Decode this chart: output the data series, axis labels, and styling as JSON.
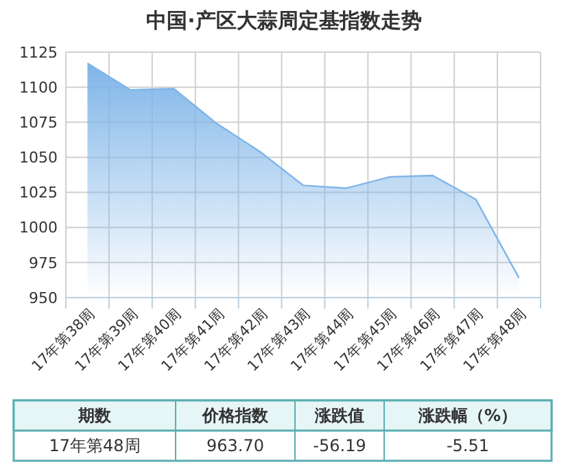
{
  "chart_data": {
    "type": "area",
    "title": "中国·产区大蒜周定基指数走势",
    "categories": [
      "17年第38周",
      "17年第39周",
      "17年第40周",
      "17年第41周",
      "17年第42周",
      "17年第43周",
      "17年第44周",
      "17年第45周",
      "17年第46周",
      "17年第47周",
      "17年第48周"
    ],
    "series": [
      {
        "color": "#7fb5e8",
        "values": [
          1117,
          1098,
          1099,
          1074,
          1054,
          1030,
          1028,
          1036,
          1037,
          1020,
          964
        ]
      }
    ],
    "ylim": [
      950,
      1125
    ],
    "yticks": [
      950,
      975,
      1000,
      1025,
      1050,
      1075,
      1100,
      1125
    ],
    "grid": true,
    "annotations": [
      "期数",
      "价格指数",
      "涨跌值",
      "涨跌幅（%）",
      "17年第48周",
      "963.70",
      "-56.19",
      "-5.51"
    ]
  }
}
